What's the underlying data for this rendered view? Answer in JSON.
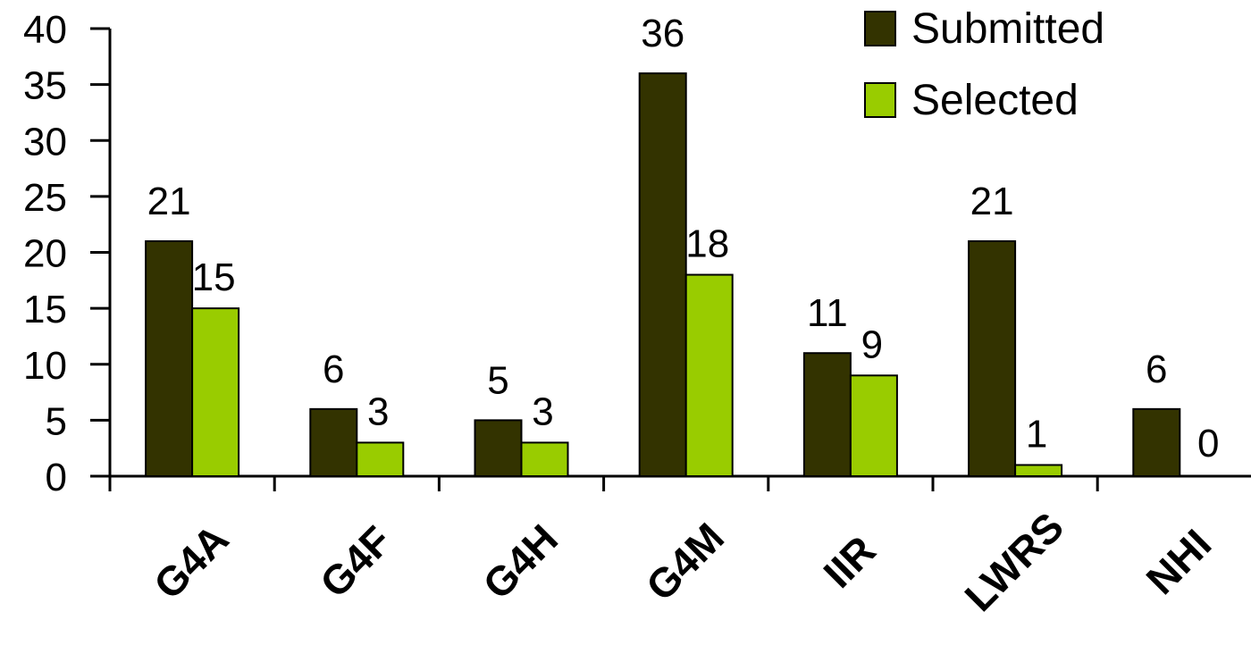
{
  "chart_data": {
    "type": "bar",
    "categories": [
      "G4A",
      "G4F",
      "G4H",
      "G4M",
      "IIR",
      "LWRS",
      "NHI"
    ],
    "series": [
      {
        "name": "Submitted",
        "values": [
          21,
          6,
          5,
          36,
          11,
          21,
          6
        ],
        "color": "#333300"
      },
      {
        "name": "Selected",
        "values": [
          15,
          3,
          3,
          18,
          9,
          1,
          0
        ],
        "color": "#99cc00"
      }
    ],
    "ylim": [
      0,
      40
    ],
    "yticks": [
      "0",
      "5",
      "10",
      "15",
      "20",
      "25",
      "30",
      "35",
      "40"
    ],
    "title": "",
    "xlabel": "",
    "ylabel": "",
    "grid": false,
    "legend_position": "top-right"
  }
}
